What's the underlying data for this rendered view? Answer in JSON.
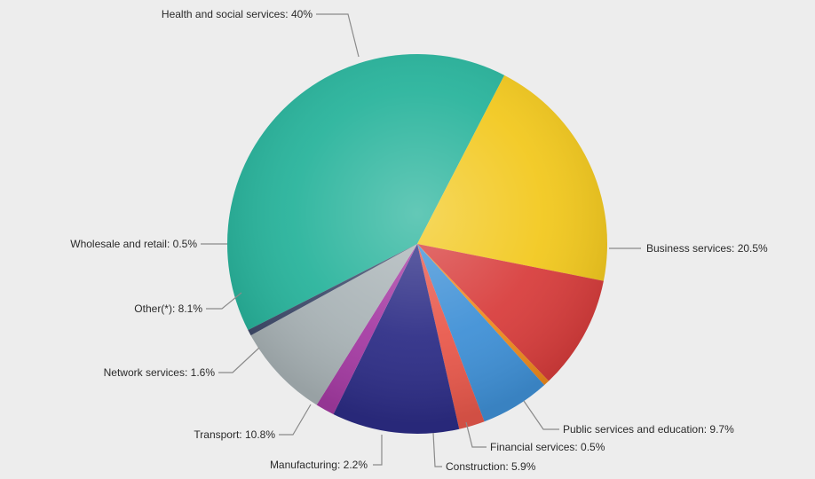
{
  "chart_data": {
    "type": "pie",
    "title": "",
    "legend": "none",
    "slices": [
      {
        "label": "Health and social services: 40%",
        "name": "Health and social services",
        "value": 40,
        "color": "#27b39b"
      },
      {
        "label": "Business services: 20.5%",
        "name": "Business services",
        "value": 20.5,
        "color": "#f2c81d"
      },
      {
        "label": "Public services and education: 9.7%",
        "name": "Public services and education",
        "value": 9.7,
        "color": "#d83d3c"
      },
      {
        "label": "Financial services: 0.5%",
        "name": "Financial services",
        "value": 0.5,
        "color": "#ee8a1e"
      },
      {
        "label": "Construction: 5.9%",
        "name": "Construction",
        "value": 5.9,
        "color": "#3f90d6"
      },
      {
        "label": "Manufacturing: 2.2%",
        "name": "Manufacturing",
        "value": 2.2,
        "color": "#e8584b"
      },
      {
        "label": "Transport: 10.8%",
        "name": "Transport",
        "value": 10.8,
        "color": "#2d2d86"
      },
      {
        "label": "Network services: 1.6%",
        "name": "Network services",
        "value": 1.6,
        "color": "#a53ba3"
      },
      {
        "label": "Other(*): 8.1%",
        "name": "Other(*)",
        "value": 8.1,
        "color": "#a9b3b6"
      },
      {
        "label": "Wholesale and retail: 0.5%",
        "name": "Wholesale and retail",
        "value": 0.5,
        "color": "#3e4a6a"
      }
    ]
  }
}
